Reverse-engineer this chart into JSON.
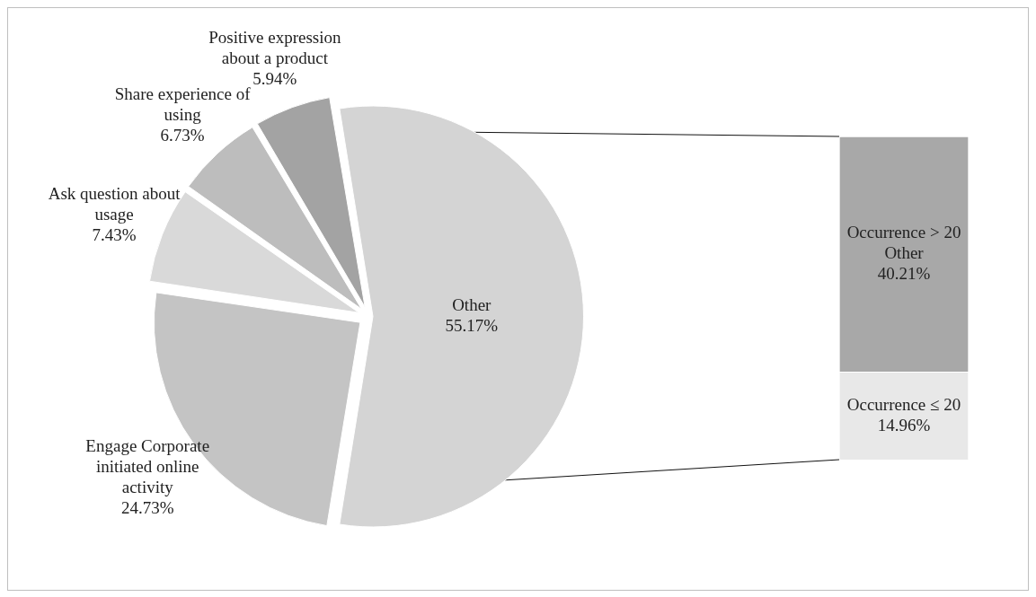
{
  "chart_data": [
    {
      "type": "pie",
      "categories": [
        "Other",
        "Engage Corporate initiated online activity",
        "Ask question about usage",
        "Share experience of using",
        "Positive expression about a product"
      ],
      "values": [
        55.17,
        24.73,
        7.43,
        6.73,
        5.94
      ],
      "value_labels": [
        "55.17%",
        "24.73%",
        "7.43%",
        "6.73%",
        "5.94%"
      ],
      "colors": [
        "#d4d4d4",
        "#c4c4c4",
        "#d9d9d9",
        "#bdbdbd",
        "#a3a3a3"
      ]
    },
    {
      "type": "bar",
      "stacked": true,
      "categories": [
        null
      ],
      "series": [
        {
          "name": "Occurrence ≤ 20",
          "color": "#e8e8e8",
          "values": [
            14.96
          ],
          "value_labels": [
            "14.96%"
          ]
        },
        {
          "name": "Occurrence > 20 Other",
          "color": "#a8a8a8",
          "values": [
            40.21
          ],
          "value_labels": [
            "40.21%"
          ]
        }
      ]
    }
  ]
}
